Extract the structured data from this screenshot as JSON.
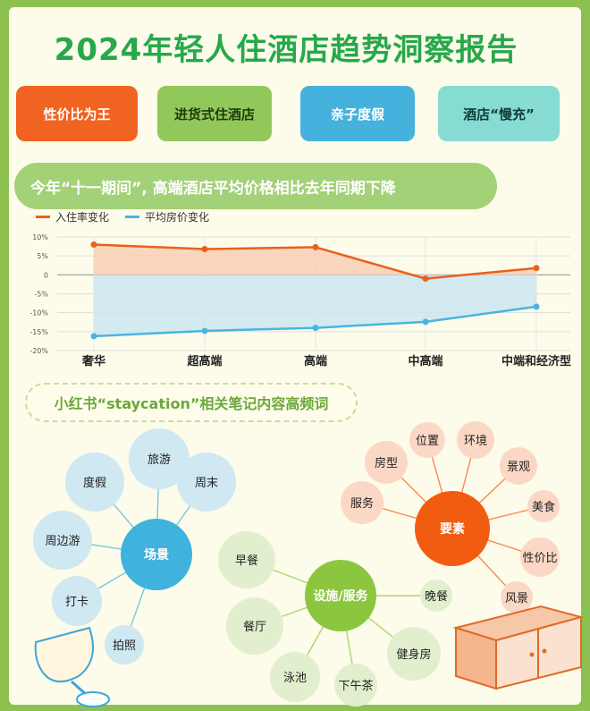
{
  "title": "2024年轻人住酒店趋势洞察报告",
  "tags": [
    "性价比为王",
    "进货式住酒店",
    "亲子度假",
    "酒店“慢充”"
  ],
  "banner": "今年“十一期间”, 高端酒店平均价格相比去年同期下降",
  "colors": {
    "occupancy": "#e8611c",
    "price": "#4ab4e0",
    "scene": "#3fb3de",
    "facility": "#8cc63f",
    "element": "#f25c11"
  },
  "chart_data": {
    "type": "line",
    "categories": [
      "奢华",
      "超高端",
      "高端",
      "中高端",
      "中端和经济型"
    ],
    "series": [
      {
        "name": "入住率变化",
        "values": [
          8,
          6.8,
          7.3,
          -1,
          1.8
        ]
      },
      {
        "name": "平均房价变化",
        "values": [
          -16.2,
          -14.8,
          -14,
          -12.4,
          -8.4
        ]
      }
    ],
    "yticks": [
      "10%",
      "5%",
      "0",
      "-5%",
      "-10%",
      "-15%",
      "-20%"
    ],
    "ylim": [
      -20,
      10
    ],
    "grid": true,
    "legend": "top-left"
  },
  "wordcloud": {
    "heading": "小红书“staycation”相关笔记内容高频词",
    "clusters": [
      {
        "center": "场景",
        "words": [
          "旅游",
          "度假",
          "周末",
          "周边游",
          "打卡",
          "拍照"
        ]
      },
      {
        "center": "设施/服务",
        "words": [
          "早餐",
          "餐厅",
          "泳池",
          "下午茶",
          "健身房",
          "晚餐"
        ]
      },
      {
        "center": "要素",
        "words": [
          "位置",
          "环境",
          "房型",
          "景观",
          "服务",
          "美食",
          "性价比",
          "风景"
        ]
      }
    ]
  }
}
